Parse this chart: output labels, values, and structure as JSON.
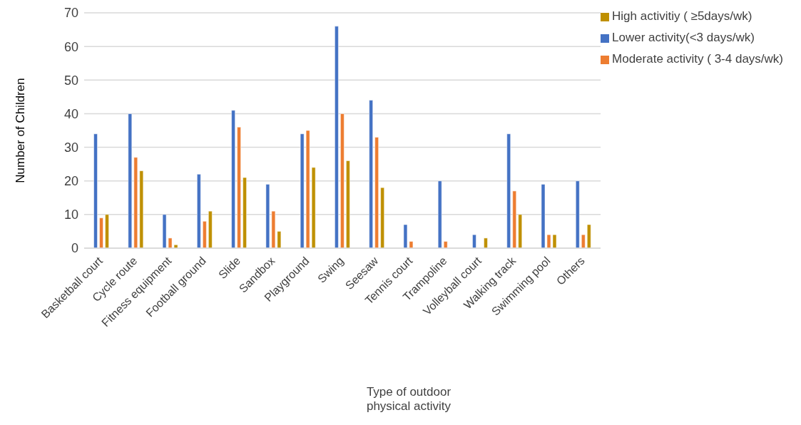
{
  "chart_data": {
    "type": "bar",
    "xlabel": "Type of outdoor physical activity",
    "ylabel": "Number of Children",
    "categories": [
      "Basketball court",
      "Cycle route",
      "Fitness equipment",
      "Football ground",
      "Slide",
      "Sandbox",
      "Playground",
      "Swing",
      "Seesaw",
      "Tennis court",
      "Trampoline",
      "Volleyball court",
      "Walking track",
      "Swimming pool",
      "Others"
    ],
    "series": [
      {
        "name": "Lower activity(<3 days/wk)",
        "color": "#4472c4",
        "values": [
          34,
          40,
          10,
          22,
          41,
          19,
          34,
          66,
          44,
          7,
          20,
          4,
          34,
          19,
          20
        ]
      },
      {
        "name": "Moderate activity ( 3-4 days/wk)",
        "color": "#ed7d31",
        "values": [
          9,
          27,
          3,
          8,
          36,
          11,
          35,
          40,
          33,
          2,
          2,
          0,
          17,
          4,
          4
        ]
      },
      {
        "name": "High activitiy ( ≥5days/wk)",
        "color": "#bf9000",
        "values": [
          10,
          23,
          1,
          11,
          21,
          5,
          24,
          26,
          18,
          0,
          0,
          3,
          10,
          4,
          7
        ]
      }
    ],
    "ylim": [
      0,
      70
    ],
    "yticks": [
      0,
      10,
      20,
      30,
      40,
      50,
      60,
      70
    ],
    "grid": "y",
    "legend": "top right"
  }
}
